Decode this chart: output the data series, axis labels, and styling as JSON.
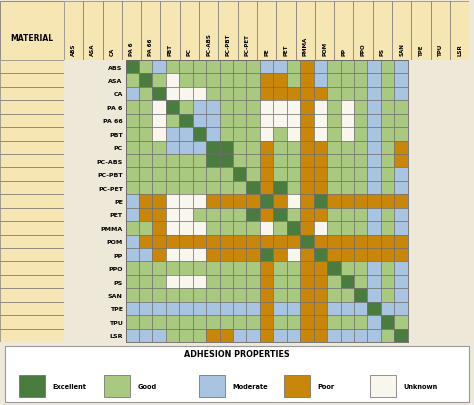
{
  "materials": [
    "ABS",
    "ASA",
    "CA",
    "PA 6",
    "PA 66",
    "PBT",
    "PC",
    "PC-ABS",
    "PC-PBT",
    "PC-PET",
    "PE",
    "PET",
    "PMMA",
    "POM",
    "PP",
    "PPO",
    "PS",
    "SAN",
    "TPE",
    "TPU",
    "LSR"
  ],
  "columns": [
    "ABS",
    "ASA",
    "CA",
    "PA 6",
    "PA 66",
    "PBT",
    "PC",
    "PC-ABS",
    "PC-PBT",
    "PC-PET",
    "PE",
    "PET",
    "PMMA",
    "POM",
    "PP",
    "PPO",
    "PS",
    "SAN",
    "TPE",
    "TPU",
    "LSR"
  ],
  "color_map": {
    "E": "#4a7c3f",
    "G": "#a8c97f",
    "M": "#a8c4e0",
    "P": "#c8860a",
    "U": "#f9f6ee"
  },
  "legend_labels": [
    "Excellent",
    "Good",
    "Moderate",
    "Poor",
    "Unknown"
  ],
  "legend_keys": [
    "E",
    "G",
    "M",
    "P",
    "U"
  ],
  "title": "ADHESION PROPERTIES",
  "header_bg": "#f5e6b4",
  "border_color": "#666666",
  "matrix": [
    [
      "E",
      "G",
      "M",
      "G",
      "G",
      "G",
      "G",
      "G",
      "G",
      "G",
      "M",
      "M",
      "G",
      "P",
      "M",
      "G",
      "G",
      "G",
      "M",
      "G",
      "M"
    ],
    [
      "G",
      "E",
      "G",
      "U",
      "G",
      "G",
      "G",
      "G",
      "G",
      "G",
      "P",
      "P",
      "G",
      "P",
      "M",
      "G",
      "G",
      "G",
      "M",
      "G",
      "M"
    ],
    [
      "M",
      "G",
      "E",
      "U",
      "U",
      "U",
      "G",
      "G",
      "G",
      "G",
      "P",
      "P",
      "P",
      "P",
      "P",
      "G",
      "G",
      "G",
      "M",
      "G",
      "M"
    ],
    [
      "G",
      "G",
      "U",
      "E",
      "G",
      "M",
      "M",
      "G",
      "G",
      "G",
      "U",
      "U",
      "U",
      "P",
      "U",
      "G",
      "U",
      "G",
      "M",
      "G",
      "G"
    ],
    [
      "G",
      "G",
      "U",
      "G",
      "E",
      "M",
      "M",
      "G",
      "G",
      "G",
      "U",
      "U",
      "U",
      "P",
      "U",
      "G",
      "U",
      "G",
      "M",
      "G",
      "G"
    ],
    [
      "G",
      "G",
      "U",
      "M",
      "M",
      "E",
      "M",
      "G",
      "G",
      "G",
      "U",
      "G",
      "U",
      "P",
      "U",
      "G",
      "U",
      "G",
      "M",
      "G",
      "G"
    ],
    [
      "G",
      "G",
      "G",
      "M",
      "M",
      "M",
      "E",
      "E",
      "G",
      "G",
      "P",
      "G",
      "G",
      "P",
      "P",
      "G",
      "G",
      "G",
      "M",
      "G",
      "P"
    ],
    [
      "G",
      "G",
      "G",
      "G",
      "G",
      "G",
      "E",
      "E",
      "G",
      "G",
      "P",
      "G",
      "G",
      "P",
      "P",
      "G",
      "G",
      "G",
      "M",
      "G",
      "P"
    ],
    [
      "G",
      "G",
      "G",
      "G",
      "G",
      "G",
      "G",
      "G",
      "E",
      "G",
      "P",
      "G",
      "G",
      "P",
      "P",
      "G",
      "G",
      "G",
      "M",
      "G",
      "M"
    ],
    [
      "G",
      "G",
      "G",
      "G",
      "G",
      "G",
      "G",
      "G",
      "G",
      "E",
      "P",
      "E",
      "G",
      "P",
      "P",
      "G",
      "G",
      "G",
      "M",
      "G",
      "M"
    ],
    [
      "M",
      "P",
      "P",
      "U",
      "U",
      "U",
      "P",
      "P",
      "P",
      "P",
      "E",
      "P",
      "U",
      "P",
      "E",
      "P",
      "P",
      "P",
      "P",
      "P",
      "P"
    ],
    [
      "M",
      "P",
      "P",
      "U",
      "U",
      "G",
      "G",
      "G",
      "G",
      "E",
      "P",
      "E",
      "G",
      "P",
      "P",
      "G",
      "G",
      "G",
      "M",
      "G",
      "M"
    ],
    [
      "G",
      "G",
      "P",
      "U",
      "U",
      "U",
      "G",
      "G",
      "G",
      "G",
      "U",
      "G",
      "E",
      "P",
      "U",
      "G",
      "G",
      "G",
      "M",
      "G",
      "M"
    ],
    [
      "M",
      "P",
      "P",
      "P",
      "P",
      "P",
      "P",
      "P",
      "P",
      "P",
      "P",
      "P",
      "P",
      "E",
      "P",
      "P",
      "P",
      "P",
      "P",
      "P",
      "P"
    ],
    [
      "M",
      "M",
      "P",
      "U",
      "U",
      "U",
      "P",
      "P",
      "P",
      "P",
      "E",
      "P",
      "U",
      "P",
      "E",
      "P",
      "P",
      "P",
      "P",
      "P",
      "P"
    ],
    [
      "G",
      "G",
      "G",
      "G",
      "G",
      "G",
      "G",
      "G",
      "G",
      "G",
      "P",
      "G",
      "G",
      "P",
      "P",
      "E",
      "G",
      "G",
      "M",
      "G",
      "M"
    ],
    [
      "G",
      "G",
      "G",
      "U",
      "U",
      "U",
      "G",
      "G",
      "G",
      "G",
      "P",
      "G",
      "G",
      "P",
      "P",
      "G",
      "E",
      "G",
      "M",
      "G",
      "M"
    ],
    [
      "G",
      "G",
      "G",
      "G",
      "G",
      "G",
      "G",
      "G",
      "G",
      "G",
      "P",
      "G",
      "G",
      "P",
      "P",
      "G",
      "G",
      "E",
      "M",
      "G",
      "M"
    ],
    [
      "M",
      "M",
      "M",
      "M",
      "M",
      "M",
      "M",
      "M",
      "M",
      "M",
      "P",
      "M",
      "M",
      "P",
      "P",
      "M",
      "M",
      "M",
      "E",
      "M",
      "M"
    ],
    [
      "G",
      "G",
      "G",
      "G",
      "G",
      "G",
      "G",
      "G",
      "G",
      "G",
      "P",
      "G",
      "G",
      "P",
      "P",
      "G",
      "G",
      "G",
      "M",
      "E",
      "G"
    ],
    [
      "M",
      "M",
      "M",
      "G",
      "G",
      "G",
      "P",
      "P",
      "M",
      "M",
      "P",
      "M",
      "M",
      "P",
      "P",
      "M",
      "M",
      "M",
      "M",
      "G",
      "E"
    ]
  ],
  "fig_bg": "#ede8d8",
  "outer_border_color": "#999999",
  "legend_box_bg": "#ffffff",
  "figsize": [
    4.74,
    4.06
  ],
  "dpi": 100
}
